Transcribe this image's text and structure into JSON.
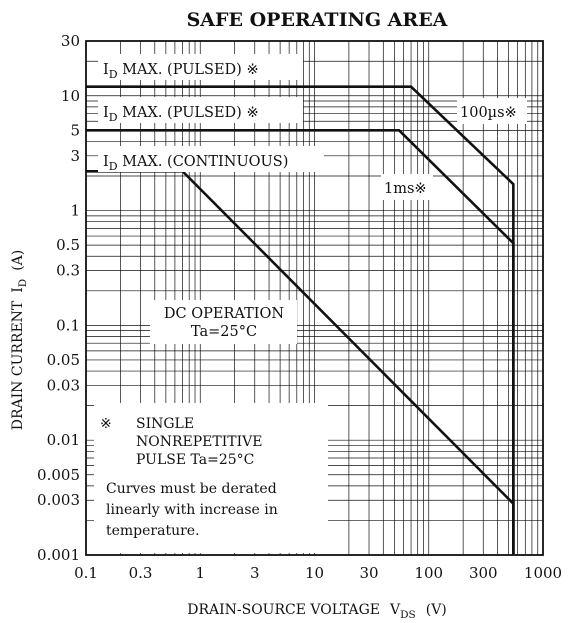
{
  "chart_data": {
    "type": "line",
    "title": "SAFE OPERATING AREA",
    "xlabel": {
      "main": "DRAIN-SOURCE VOLTAGE",
      "symbol": "V",
      "subscript": "DS",
      "unit": "(V)"
    },
    "ylabel": {
      "main": "DRAIN CURRENT",
      "symbol": "I",
      "subscript": "D",
      "unit": "(A)"
    },
    "x_scale": "log",
    "y_scale": "log",
    "xlim": [
      0.1,
      1000
    ],
    "ylim": [
      0.001,
      30
    ],
    "grid": true,
    "x_ticks": [
      {
        "value": 0.1,
        "label": "0.1"
      },
      {
        "value": 0.3,
        "label": "0.3"
      },
      {
        "value": 1,
        "label": "1"
      },
      {
        "value": 3,
        "label": "3"
      },
      {
        "value": 10,
        "label": "10"
      },
      {
        "value": 30,
        "label": "30"
      },
      {
        "value": 100,
        "label": "100"
      },
      {
        "value": 300,
        "label": "300"
      },
      {
        "value": 1000,
        "label": "1000"
      }
    ],
    "y_ticks": [
      {
        "value": 30,
        "label": "30"
      },
      {
        "value": 10,
        "label": "10"
      },
      {
        "value": 5,
        "label": "5"
      },
      {
        "value": 3,
        "label": "3"
      },
      {
        "value": 1,
        "label": "1"
      },
      {
        "value": 0.5,
        "label": "0.5"
      },
      {
        "value": 0.3,
        "label": "0.3"
      },
      {
        "value": 0.1,
        "label": "0.1"
      },
      {
        "value": 0.05,
        "label": "0.05"
      },
      {
        "value": 0.03,
        "label": "0.03"
      },
      {
        "value": 0.01,
        "label": "0.01"
      },
      {
        "value": 0.005,
        "label": "0.005"
      },
      {
        "value": 0.003,
        "label": "0.003"
      },
      {
        "value": 0.001,
        "label": "0.001"
      }
    ],
    "series": [
      {
        "name": "100µs※",
        "points": [
          [
            0.1,
            12
          ],
          [
            70,
            12
          ],
          [
            550,
            1.7
          ],
          [
            550,
            0.001
          ]
        ]
      },
      {
        "name": "1ms※",
        "points": [
          [
            0.1,
            5
          ],
          [
            55,
            5
          ],
          [
            550,
            0.52
          ],
          [
            550,
            0.001
          ]
        ]
      },
      {
        "name": "DC OPERATION Ta=25°C",
        "points": [
          [
            0.1,
            2.2
          ],
          [
            0.7,
            2.2
          ],
          [
            550,
            0.0028
          ],
          [
            550,
            0.001
          ]
        ]
      }
    ],
    "annotations": {
      "id_pulsed_top": {
        "main": "I",
        "sub": "D",
        "rest": " MAX. (PULSED) ※"
      },
      "id_pulsed_mid": {
        "main": "I",
        "sub": "D",
        "rest": " MAX. (PULSED) ※"
      },
      "id_continuous": {
        "main": "I",
        "sub": "D",
        "rest": " MAX. (CONTINUOUS)"
      },
      "label_100us": "100µs※",
      "label_1ms": "1ms※",
      "dc_line1": "DC OPERATION",
      "dc_line2": "Ta=25°C",
      "note_mark": "※",
      "note_line1": "SINGLE",
      "note_line2": "NONREPETITIVE",
      "note_line3": "PULSE Ta=25°C",
      "note_line4": "Curves must be derated",
      "note_line5": "linearly with increase in",
      "note_line6": "temperature."
    }
  }
}
